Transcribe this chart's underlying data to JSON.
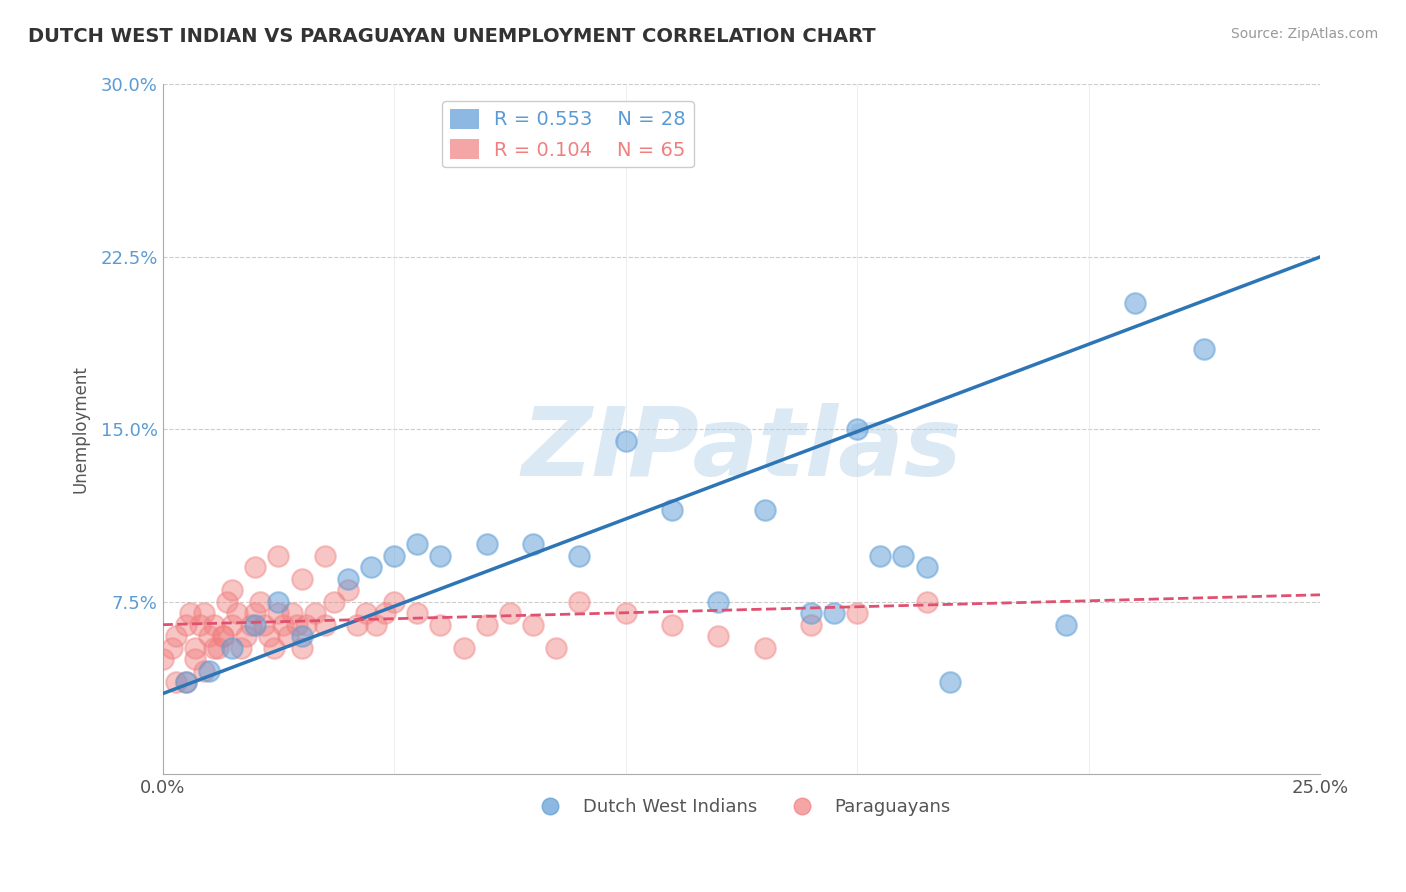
{
  "title": "DUTCH WEST INDIAN VS PARAGUAYAN UNEMPLOYMENT CORRELATION CHART",
  "source": "Source: ZipAtlas.com",
  "ylabel": "Unemployment",
  "xmin": 0.0,
  "xmax": 0.25,
  "ymin": 0.0,
  "ymax": 0.3,
  "dutch_color": "#5b9bd5",
  "dutch_line_color": "#2e75b6",
  "paraguayan_color": "#f08080",
  "paraguayan_line_color": "#e05070",
  "dutch_R": 0.553,
  "dutch_N": 28,
  "paraguayan_R": 0.104,
  "paraguayan_N": 65,
  "watermark": "ZIPatlas",
  "background_color": "#ffffff",
  "grid_color": "#cccccc",
  "ytick_color": "#5b9bd5",
  "dutch_line_y0": 0.035,
  "dutch_line_y1": 0.225,
  "para_line_y0": 0.065,
  "para_line_y1": 0.078,
  "dutch_x": [
    0.005,
    0.01,
    0.015,
    0.02,
    0.025,
    0.03,
    0.04,
    0.045,
    0.05,
    0.055,
    0.06,
    0.07,
    0.08,
    0.09,
    0.1,
    0.11,
    0.12,
    0.13,
    0.14,
    0.145,
    0.15,
    0.155,
    0.16,
    0.165,
    0.17,
    0.195,
    0.21,
    0.225
  ],
  "dutch_y": [
    0.04,
    0.045,
    0.055,
    0.065,
    0.075,
    0.06,
    0.085,
    0.09,
    0.095,
    0.1,
    0.095,
    0.1,
    0.1,
    0.095,
    0.145,
    0.115,
    0.075,
    0.115,
    0.07,
    0.07,
    0.15,
    0.095,
    0.095,
    0.09,
    0.04,
    0.065,
    0.205,
    0.185
  ],
  "para_x": [
    0.0,
    0.002,
    0.003,
    0.005,
    0.006,
    0.007,
    0.008,
    0.009,
    0.01,
    0.011,
    0.012,
    0.013,
    0.014,
    0.015,
    0.016,
    0.017,
    0.018,
    0.019,
    0.02,
    0.021,
    0.022,
    0.023,
    0.024,
    0.025,
    0.026,
    0.027,
    0.028,
    0.029,
    0.03,
    0.031,
    0.033,
    0.035,
    0.037,
    0.04,
    0.042,
    0.044,
    0.046,
    0.048,
    0.05,
    0.055,
    0.06,
    0.065,
    0.07,
    0.075,
    0.08,
    0.085,
    0.09,
    0.1,
    0.11,
    0.12,
    0.13,
    0.14,
    0.15,
    0.165,
    0.003,
    0.005,
    0.007,
    0.009,
    0.011,
    0.013,
    0.015,
    0.02,
    0.025,
    0.03,
    0.035
  ],
  "para_y": [
    0.05,
    0.055,
    0.06,
    0.065,
    0.07,
    0.055,
    0.065,
    0.07,
    0.06,
    0.065,
    0.055,
    0.06,
    0.075,
    0.065,
    0.07,
    0.055,
    0.06,
    0.065,
    0.07,
    0.075,
    0.065,
    0.06,
    0.055,
    0.07,
    0.065,
    0.06,
    0.07,
    0.065,
    0.055,
    0.065,
    0.07,
    0.065,
    0.075,
    0.08,
    0.065,
    0.07,
    0.065,
    0.07,
    0.075,
    0.07,
    0.065,
    0.055,
    0.065,
    0.07,
    0.065,
    0.055,
    0.075,
    0.07,
    0.065,
    0.06,
    0.055,
    0.065,
    0.07,
    0.075,
    0.04,
    0.04,
    0.05,
    0.045,
    0.055,
    0.06,
    0.08,
    0.09,
    0.095,
    0.085,
    0.095
  ]
}
